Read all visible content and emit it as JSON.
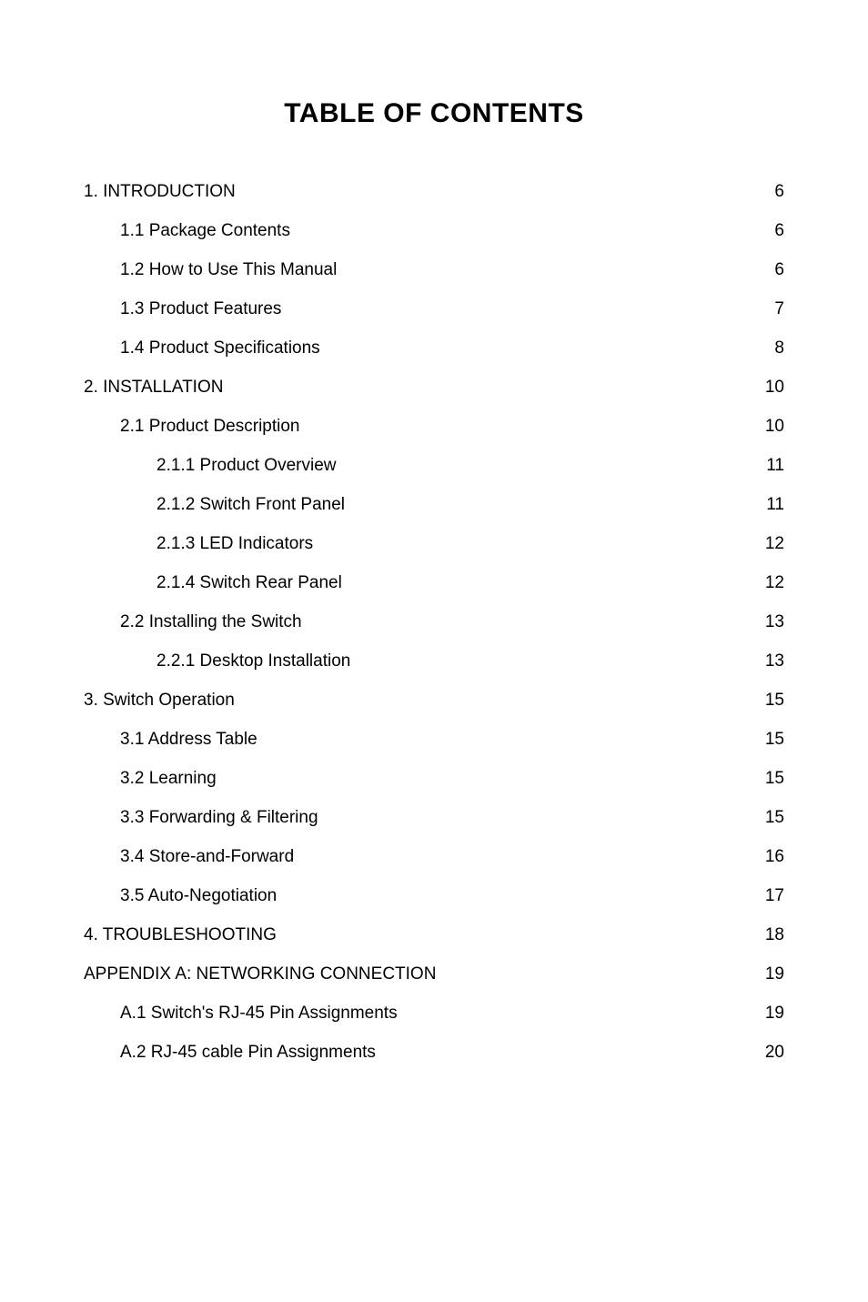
{
  "title": "TABLE OF CONTENTS",
  "entries": [
    {
      "label": "1. INTRODUCTION",
      "page": "6",
      "indent": 0
    },
    {
      "label": "1.1 Package Contents",
      "page": "6",
      "indent": 1
    },
    {
      "label": "1.2 How to Use This Manual",
      "page": "6",
      "indent": 1
    },
    {
      "label": "1.3 Product Features",
      "page": "7",
      "indent": 1
    },
    {
      "label": "1.4 Product Specifications",
      "page": "8",
      "indent": 1
    },
    {
      "label": "2. INSTALLATION",
      "page": "10",
      "indent": 0
    },
    {
      "label": "2.1 Product Description",
      "page": "10",
      "indent": 1
    },
    {
      "label": "2.1.1 Product Overview",
      "page": "11",
      "indent": 2
    },
    {
      "label": "2.1.2 Switch Front Panel",
      "page": "11",
      "indent": 2
    },
    {
      "label": "2.1.3 LED Indicators",
      "page": "12",
      "indent": 2
    },
    {
      "label": "2.1.4 Switch Rear Panel",
      "page": "12",
      "indent": 2
    },
    {
      "label": "2.2 Installing the Switch",
      "page": "13",
      "indent": 1
    },
    {
      "label": "2.2.1 Desktop Installation",
      "page": "13",
      "indent": 2
    },
    {
      "label": "3. Switch Operation",
      "page": "15",
      "indent": 0
    },
    {
      "label": "3.1 Address Table",
      "page": "15",
      "indent": 1
    },
    {
      "label": "3.2 Learning",
      "page": "15",
      "indent": 1
    },
    {
      "label": "3.3 Forwarding & Filtering",
      "page": "15",
      "indent": 1
    },
    {
      "label": "3.4 Store-and-Forward",
      "page": "16",
      "indent": 1
    },
    {
      "label": "3.5 Auto-Negotiation",
      "page": "17",
      "indent": 1
    },
    {
      "label": "4. TROUBLESHOOTING",
      "page": "18",
      "indent": 0
    },
    {
      "label": "APPENDIX A: NETWORKING CONNECTION",
      "page": "19",
      "indent": 0
    },
    {
      "label": "A.1 Switch's RJ-45 Pin Assignments",
      "page": "19",
      "indent": 1
    },
    {
      "label": "A.2 RJ-45 cable Pin Assignments",
      "page": "20",
      "indent": 1
    }
  ]
}
